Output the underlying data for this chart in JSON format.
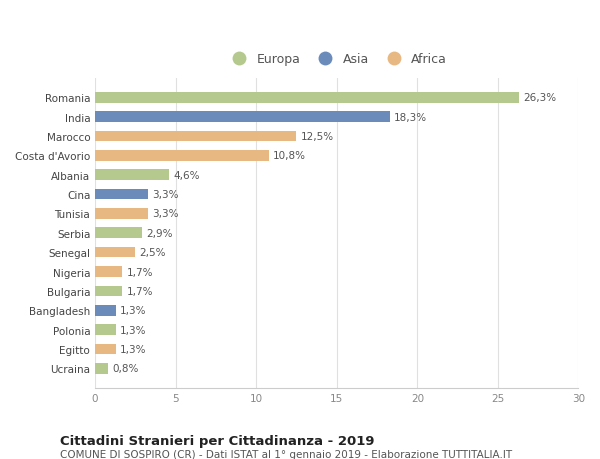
{
  "countries": [
    "Romania",
    "India",
    "Marocco",
    "Costa d'Avorio",
    "Albania",
    "Cina",
    "Tunisia",
    "Serbia",
    "Senegal",
    "Nigeria",
    "Bulgaria",
    "Bangladesh",
    "Polonia",
    "Egitto",
    "Ucraina"
  ],
  "values": [
    26.3,
    18.3,
    12.5,
    10.8,
    4.6,
    3.3,
    3.3,
    2.9,
    2.5,
    1.7,
    1.7,
    1.3,
    1.3,
    1.3,
    0.8
  ],
  "labels": [
    "26,3%",
    "18,3%",
    "12,5%",
    "10,8%",
    "4,6%",
    "3,3%",
    "3,3%",
    "2,9%",
    "2,5%",
    "1,7%",
    "1,7%",
    "1,3%",
    "1,3%",
    "1,3%",
    "0,8%"
  ],
  "continent": [
    "Europa",
    "Asia",
    "Africa",
    "Africa",
    "Europa",
    "Asia",
    "Africa",
    "Europa",
    "Africa",
    "Africa",
    "Europa",
    "Asia",
    "Europa",
    "Africa",
    "Europa"
  ],
  "colors": {
    "Europa": "#b5c98e",
    "Asia": "#6b8cba",
    "Africa": "#e8b882"
  },
  "legend_entries": [
    "Europa",
    "Asia",
    "Africa"
  ],
  "xlim": [
    0,
    30
  ],
  "xticks": [
    0,
    5,
    10,
    15,
    20,
    25,
    30
  ],
  "title": "Cittadini Stranieri per Cittadinanza - 2019",
  "subtitle": "COMUNE DI SOSPIRO (CR) - Dati ISTAT al 1° gennaio 2019 - Elaborazione TUTTITALIA.IT",
  "background_color": "#ffffff",
  "grid_color": "#e0e0e0",
  "bar_height": 0.55,
  "title_fontsize": 9.5,
  "subtitle_fontsize": 7.5,
  "label_fontsize": 7.5,
  "tick_fontsize": 7.5,
  "legend_fontsize": 9
}
